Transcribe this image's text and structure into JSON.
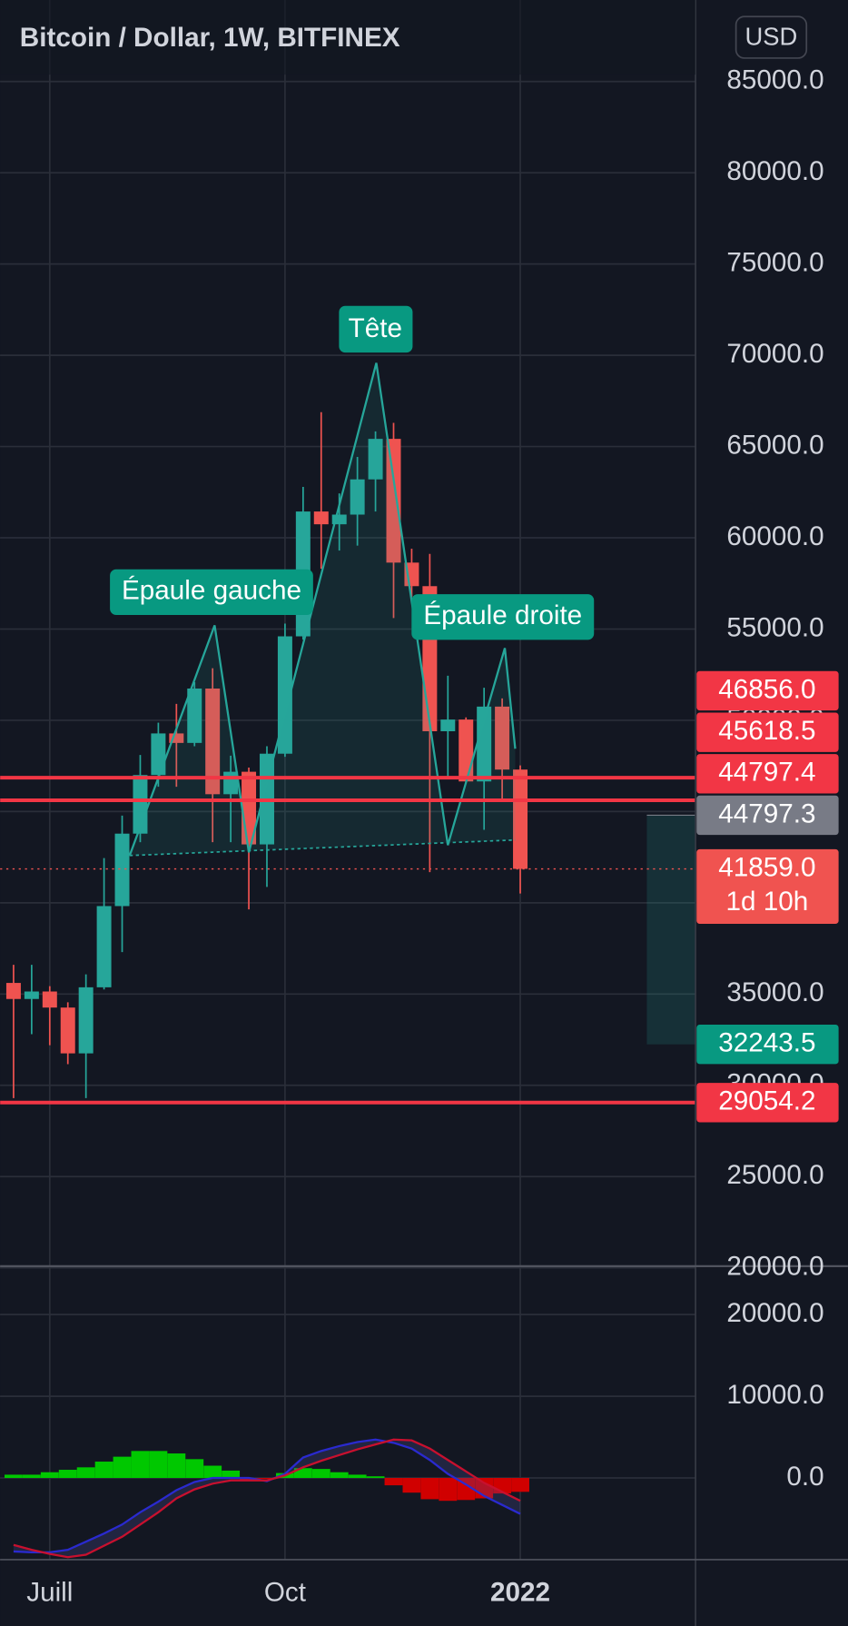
{
  "chart_data": [
    {
      "type": "candlestick",
      "title": "Bitcoin / Dollar, 1W, BITFINEX",
      "currency": "USD",
      "categories": [
        null,
        null,
        "Juill",
        null,
        null,
        null,
        null,
        null,
        null,
        null,
        null,
        null,
        null,
        null,
        null,
        "Oct",
        null,
        null,
        null,
        null,
        null,
        null,
        null,
        null,
        null,
        null,
        null,
        null,
        "2022"
      ],
      "open": [
        35610,
        34730,
        35140,
        34260,
        31750,
        35370,
        39820,
        43790,
        47000,
        49280,
        48760,
        51740,
        45950,
        47180,
        43200,
        48170,
        54600,
        61440,
        60740,
        61270,
        63200,
        65420,
        58640,
        57350,
        49400,
        50040,
        46650,
        50750,
        47300
      ],
      "high": [
        36600,
        36600,
        35430,
        34550,
        36080,
        42450,
        44780,
        48100,
        49870,
        50900,
        52090,
        52850,
        48060,
        47410,
        48580,
        55300,
        62790,
        66880,
        62430,
        64430,
        65830,
        66300,
        59400,
        59120,
        52440,
        50160,
        51780,
        51200,
        47530
      ],
      "low": [
        29300,
        32800,
        32200,
        31160,
        29300,
        35250,
        37300,
        43320,
        46360,
        46360,
        48580,
        43320,
        43320,
        39640,
        40870,
        48000,
        54420,
        58300,
        59300,
        59570,
        61440,
        55600,
        56760,
        41680,
        46800,
        46530,
        44000,
        45560,
        40510
      ],
      "close": [
        34730,
        35140,
        34260,
        31750,
        35370,
        39820,
        43790,
        47000,
        49280,
        48760,
        51740,
        45950,
        47180,
        43200,
        48170,
        54600,
        61440,
        60740,
        61270,
        63200,
        65420,
        58640,
        57350,
        49400,
        50040,
        46650,
        50750,
        47300,
        41860
      ],
      "up_color": "#26a69a",
      "down_color": "#ef5350",
      "ylim": [
        18500,
        88500
      ],
      "yticks": [
        {
          "value": 20000,
          "label": "20000.0"
        },
        {
          "value": 25000,
          "label": "25000.0"
        },
        {
          "value": 30000,
          "label": "30000.0"
        },
        {
          "value": 35000,
          "label": "35000.0"
        },
        {
          "value": 40000,
          "label": "40000.0"
        },
        {
          "value": 45000,
          "label": "45000.0"
        },
        {
          "value": 50000,
          "label": "50000.0"
        },
        {
          "value": 55000,
          "label": "55000.0"
        },
        {
          "value": 60000,
          "label": "60000.0"
        },
        {
          "value": 65000,
          "label": "65000.0"
        },
        {
          "value": 70000,
          "label": "70000.0"
        },
        {
          "value": 75000,
          "label": "75000.0"
        },
        {
          "value": 80000,
          "label": "80000.0"
        },
        {
          "value": 85000,
          "label": "85000.0"
        }
      ],
      "grid": true,
      "price_tags": [
        {
          "value": 46856.0,
          "label": "46856.0",
          "color": "#f23645",
          "line": true
        },
        {
          "value": 45618.5,
          "label": "45618.5",
          "color": "#f23645",
          "line": true
        },
        {
          "value": 44797.4,
          "label": "44797.4",
          "color": "#f23645",
          "line": false
        },
        {
          "value": 44797.3,
          "label": "44797.3",
          "color": "#787b86",
          "line": false
        },
        {
          "value": 41859.0,
          "label": "41859.0",
          "color": "#f05350",
          "line": false,
          "countdown": "1d 10h"
        },
        {
          "value": 32243.5,
          "label": "32243.5",
          "color": "#089981",
          "line": false
        },
        {
          "value": 29054.2,
          "label": "29054.2",
          "color": "#f23645",
          "line": true
        }
      ],
      "annotations": [
        {
          "text": "Épaule gauche"
        },
        {
          "text": "Tête"
        },
        {
          "text": "Épaule droite"
        }
      ]
    },
    {
      "type": "macd",
      "histogram": [
        400,
        400,
        700,
        1000,
        1300,
        2000,
        2600,
        3300,
        3300,
        3000,
        2300,
        1500,
        900,
        -200,
        -100,
        600,
        1200,
        1100,
        700,
        400,
        200,
        -900,
        -1800,
        -2600,
        -2800,
        -2700,
        -2500,
        -1900,
        -1700
      ],
      "macd": [
        -9000,
        -9100,
        -9100,
        -8800,
        -7800,
        -6800,
        -5700,
        -4200,
        -2900,
        -1500,
        -500,
        0,
        0,
        0,
        -400,
        500,
        2500,
        3300,
        3900,
        4400,
        4700,
        4300,
        3600,
        2200,
        500,
        -800,
        -2200,
        -3300,
        -4400
      ],
      "signal": [
        -8200,
        -8800,
        -9300,
        -9700,
        -9400,
        -8300,
        -7200,
        -5700,
        -4200,
        -2500,
        -1400,
        -700,
        -300,
        -300,
        -300,
        300,
        1300,
        2100,
        2800,
        3500,
        4100,
        4700,
        4600,
        3600,
        2200,
        800,
        -600,
        -1700,
        -2800
      ],
      "histogram_up_color": "#00c800",
      "histogram_down_color": "#d00000",
      "macd_color": "#2a2acf",
      "signal_color": "#c8102e",
      "ylim": [
        -10000,
        25800
      ],
      "yticks": [
        {
          "value": 0,
          "label": "0.0"
        },
        {
          "value": 10000,
          "label": "10000.0"
        },
        {
          "value": 20000,
          "label": "20000.0"
        }
      ]
    }
  ]
}
